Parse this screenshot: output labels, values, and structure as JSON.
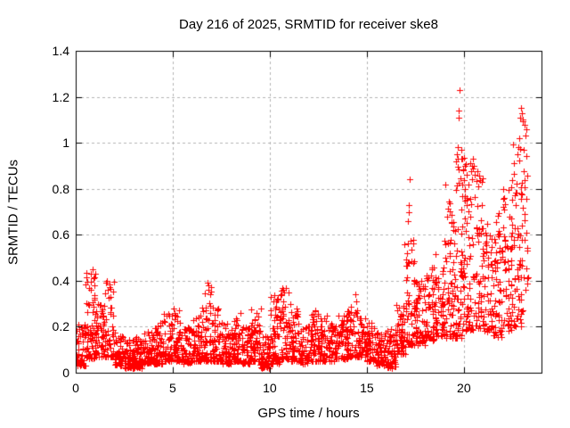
{
  "chart_data": {
    "type": "scatter",
    "title": "Day 216 of 2025, SRMTID for receiver ske8",
    "xlabel": "GPS time / hours",
    "ylabel": "SRMTID / TECUs",
    "xlim": [
      0,
      24
    ],
    "ylim": [
      0,
      1.4
    ],
    "xticks": [
      0,
      5,
      10,
      15,
      20
    ],
    "yticks": [
      0,
      0.2,
      0.4,
      0.6,
      0.8,
      1,
      1.2,
      1.4
    ],
    "grid": true,
    "legend": "none",
    "marker": "+",
    "marker_color": "#ff0000",
    "marker_size": 7,
    "grid_color": "#b3b3b3",
    "axis_color": "#000000",
    "background_color": "#ffffff",
    "bands_schema": [
      "x_start",
      "x_end",
      "count",
      "y_min",
      "y_max",
      "concentration_exponent"
    ],
    "bands": [
      [
        0.0,
        0.5,
        55,
        0.03,
        0.22,
        1.8
      ],
      [
        0.5,
        1.0,
        60,
        0.06,
        0.44,
        1.4
      ],
      [
        1.0,
        1.5,
        55,
        0.07,
        0.3,
        1.8
      ],
      [
        1.5,
        2.0,
        50,
        0.07,
        0.4,
        2.0
      ],
      [
        2.0,
        2.5,
        50,
        0.03,
        0.18,
        1.8
      ],
      [
        2.5,
        3.0,
        60,
        0.02,
        0.15,
        1.6
      ],
      [
        3.0,
        3.5,
        60,
        0.02,
        0.16,
        1.6
      ],
      [
        3.5,
        4.0,
        55,
        0.04,
        0.18,
        1.7
      ],
      [
        4.0,
        4.5,
        55,
        0.04,
        0.22,
        1.8
      ],
      [
        4.5,
        5.0,
        55,
        0.05,
        0.26,
        1.9
      ],
      [
        5.0,
        5.5,
        55,
        0.05,
        0.28,
        1.9
      ],
      [
        5.5,
        6.0,
        50,
        0.04,
        0.2,
        1.7
      ],
      [
        6.0,
        6.5,
        55,
        0.05,
        0.26,
        1.8
      ],
      [
        6.5,
        7.0,
        55,
        0.05,
        0.38,
        2.1
      ],
      [
        7.0,
        7.5,
        55,
        0.05,
        0.3,
        2.0
      ],
      [
        7.5,
        8.0,
        55,
        0.04,
        0.22,
        1.7
      ],
      [
        8.0,
        8.5,
        55,
        0.05,
        0.26,
        1.9
      ],
      [
        8.5,
        9.0,
        50,
        0.04,
        0.2,
        1.7
      ],
      [
        9.0,
        9.5,
        55,
        0.05,
        0.28,
        1.9
      ],
      [
        9.5,
        10.0,
        55,
        0.02,
        0.16,
        1.6
      ],
      [
        10.0,
        10.5,
        60,
        0.04,
        0.35,
        1.9
      ],
      [
        10.5,
        11.0,
        60,
        0.06,
        0.37,
        1.9
      ],
      [
        11.0,
        11.5,
        55,
        0.05,
        0.3,
        1.9
      ],
      [
        11.5,
        12.0,
        50,
        0.04,
        0.22,
        1.7
      ],
      [
        12.0,
        12.5,
        55,
        0.05,
        0.28,
        1.9
      ],
      [
        12.5,
        13.0,
        55,
        0.05,
        0.25,
        1.8
      ],
      [
        13.0,
        13.5,
        50,
        0.05,
        0.22,
        1.7
      ],
      [
        13.5,
        14.0,
        50,
        0.06,
        0.25,
        1.7
      ],
      [
        14.0,
        14.5,
        55,
        0.07,
        0.3,
        1.9
      ],
      [
        14.5,
        15.0,
        55,
        0.07,
        0.25,
        1.7
      ],
      [
        15.0,
        15.5,
        50,
        0.05,
        0.22,
        1.7
      ],
      [
        15.5,
        16.0,
        50,
        0.03,
        0.18,
        1.6
      ],
      [
        16.0,
        16.5,
        55,
        0.02,
        0.2,
        1.6
      ],
      [
        16.5,
        17.0,
        55,
        0.08,
        0.32,
        1.7
      ],
      [
        17.0,
        17.5,
        60,
        0.12,
        0.58,
        2.0
      ],
      [
        17.5,
        18.0,
        55,
        0.12,
        0.4,
        1.7
      ],
      [
        18.0,
        18.5,
        55,
        0.14,
        0.46,
        1.7
      ],
      [
        18.5,
        19.0,
        55,
        0.16,
        0.56,
        1.7
      ],
      [
        19.0,
        19.5,
        60,
        0.15,
        0.82,
        1.8
      ],
      [
        19.5,
        20.0,
        70,
        0.15,
        1.0,
        1.5
      ],
      [
        20.0,
        20.5,
        60,
        0.18,
        0.93,
        1.5
      ],
      [
        20.5,
        21.0,
        55,
        0.18,
        0.9,
        1.6
      ],
      [
        21.0,
        21.5,
        50,
        0.18,
        0.65,
        1.5
      ],
      [
        21.5,
        22.0,
        55,
        0.15,
        0.7,
        1.5
      ],
      [
        22.0,
        22.5,
        60,
        0.18,
        0.85,
        1.5
      ],
      [
        22.5,
        23.0,
        60,
        0.2,
        1.0,
        1.5
      ],
      [
        23.0,
        23.3,
        25,
        0.25,
        1.1,
        1.3
      ]
    ],
    "outlier_points": [
      [
        0.8,
        0.43
      ],
      [
        0.85,
        0.45
      ],
      [
        0.9,
        0.41
      ],
      [
        0.95,
        0.38
      ],
      [
        1.55,
        0.39
      ],
      [
        1.6,
        0.4
      ],
      [
        1.65,
        0.36
      ],
      [
        6.8,
        0.39
      ],
      [
        6.85,
        0.36
      ],
      [
        9.55,
        0.28
      ],
      [
        10.85,
        0.37
      ],
      [
        10.95,
        0.35
      ],
      [
        14.4,
        0.34
      ],
      [
        14.45,
        0.31
      ],
      [
        16.95,
        0.56
      ],
      [
        17.05,
        0.52
      ],
      [
        17.1,
        0.66
      ],
      [
        17.15,
        0.73
      ],
      [
        17.18,
        0.7
      ],
      [
        17.2,
        0.84
      ],
      [
        19.6,
        0.92
      ],
      [
        19.65,
        0.95
      ],
      [
        19.7,
        0.98
      ],
      [
        19.72,
        1.14
      ],
      [
        19.75,
        1.11
      ],
      [
        19.78,
        1.23
      ],
      [
        19.85,
        0.97
      ],
      [
        19.9,
        0.93
      ],
      [
        19.95,
        0.88
      ],
      [
        20.05,
        0.9
      ],
      [
        20.15,
        0.86
      ],
      [
        20.4,
        0.84
      ],
      [
        20.45,
        0.93
      ],
      [
        20.5,
        0.9
      ],
      [
        20.55,
        0.86
      ],
      [
        22.75,
        0.95
      ],
      [
        22.8,
        0.98
      ],
      [
        22.85,
        1.02
      ],
      [
        22.9,
        1.11
      ],
      [
        22.95,
        1.15
      ],
      [
        23.0,
        1.13
      ],
      [
        23.05,
        1.1
      ],
      [
        23.1,
        0.97
      ],
      [
        23.15,
        1.08
      ]
    ]
  }
}
